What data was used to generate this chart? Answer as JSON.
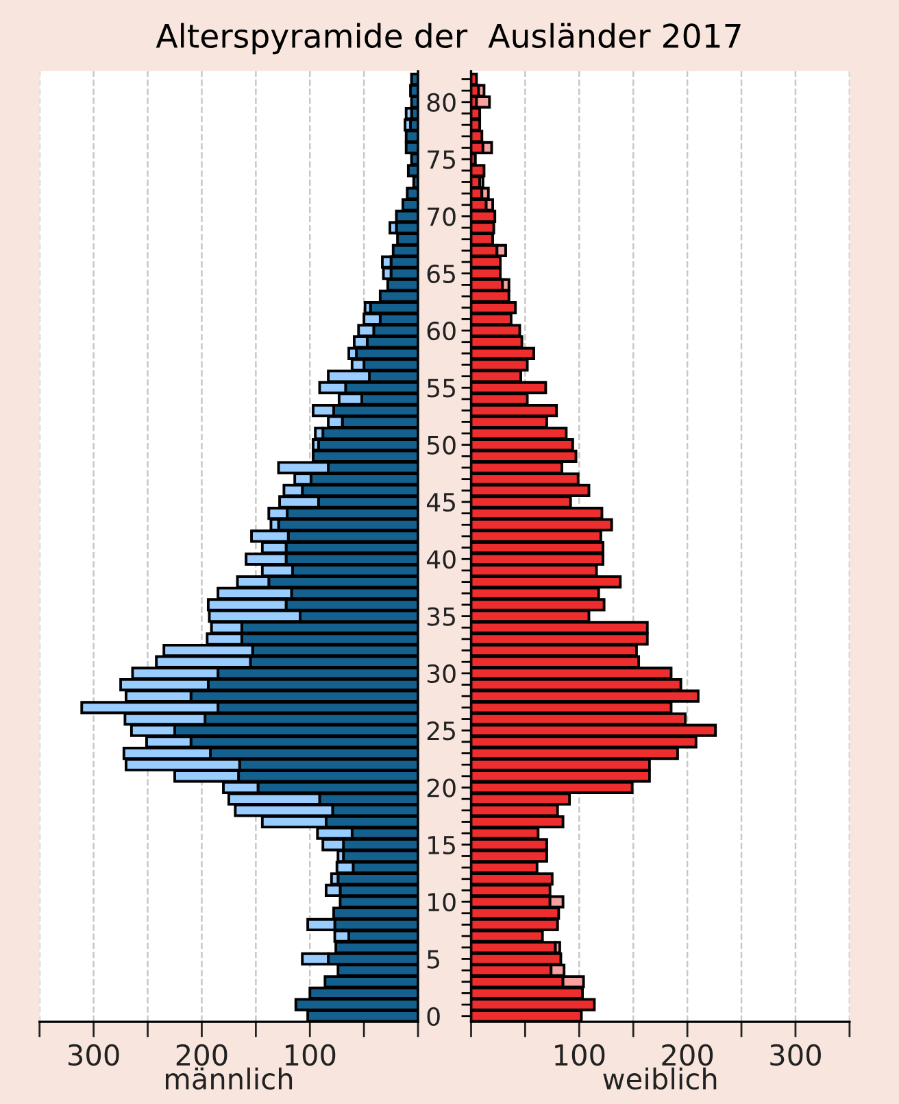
{
  "chart_data": [
    {
      "type": "bar",
      "orientation": "horizontal",
      "stacked": true,
      "title": "Alterspyramide der  Ausländer 2017",
      "xlabel": "männlich",
      "categories": [
        null,
        null,
        "80",
        null,
        null,
        null,
        null,
        "75",
        null,
        null,
        null,
        null,
        "70",
        null,
        null,
        null,
        null,
        "65",
        null,
        null,
        null,
        null,
        "60",
        null,
        null,
        null,
        null,
        "55",
        null,
        null,
        null,
        null,
        "50",
        null,
        null,
        null,
        null,
        "45",
        null,
        null,
        null,
        null,
        "40",
        null,
        null,
        null,
        null,
        "35",
        null,
        null,
        null,
        null,
        "30",
        null,
        null,
        null,
        null,
        "25",
        null,
        null,
        null,
        null,
        "20",
        null,
        null,
        null,
        null,
        "15",
        null,
        null,
        null,
        null,
        "10",
        null,
        null,
        null,
        null,
        "5",
        null,
        null,
        null,
        null,
        "0"
      ],
      "series": [
        {
          "color": "#14608f",
          "values": [
            6,
            7,
            6,
            6,
            7,
            11,
            11,
            6,
            9,
            4,
            10,
            14,
            20,
            20,
            19,
            23,
            25,
            25,
            28,
            35,
            44,
            35,
            41,
            47,
            57,
            50,
            45,
            67,
            52,
            78,
            70,
            88,
            92,
            97,
            83,
            99,
            107,
            92,
            121,
            129,
            120,
            122,
            122,
            116,
            138,
            117,
            122,
            109,
            163,
            163,
            153,
            155,
            185,
            194,
            210,
            185,
            197,
            225,
            210,
            192,
            165,
            166,
            148,
            91,
            79,
            85,
            61,
            69,
            69,
            60,
            74,
            72,
            72,
            78,
            77,
            64,
            76,
            83,
            74,
            86,
            100,
            113,
            102
          ]
        },
        {
          "color": "#99ccff",
          "values": [
            null,
            null,
            null,
            5,
            5,
            null,
            null,
            null,
            null,
            null,
            null,
            null,
            null,
            6,
            null,
            null,
            8,
            7,
            null,
            null,
            5,
            15,
            14,
            12,
            7,
            11,
            38,
            24,
            21,
            19,
            13,
            7,
            5,
            null,
            46,
            15,
            17,
            36,
            17,
            7,
            34,
            22,
            37,
            28,
            29,
            68,
            72,
            84,
            28,
            32,
            82,
            87,
            79,
            81,
            60,
            126,
            74,
            40,
            41,
            80,
            105,
            59,
            32,
            84,
            90,
            59,
            32,
            19,
            5,
            15,
            6,
            13,
            null,
            null,
            25,
            13,
            null,
            24,
            null,
            null,
            null,
            null,
            null
          ]
        }
      ],
      "xlim": [
        350,
        0
      ],
      "xticks": [
        {
          "value": 350,
          "label": null
        },
        300,
        {
          "value": 250,
          "label": null
        },
        200,
        {
          "value": 150,
          "label": null
        },
        100,
        {
          "value": 50,
          "label": null
        },
        {
          "value": 0,
          "label": null
        }
      ],
      "grid": "x",
      "line_style": "dashed"
    },
    {
      "type": "bar",
      "orientation": "horizontal",
      "stacked": true,
      "xlabel": "weiblich",
      "categories": [
        null,
        null,
        "80",
        null,
        null,
        null,
        null,
        "75",
        null,
        null,
        null,
        null,
        "70",
        null,
        null,
        null,
        null,
        "65",
        null,
        null,
        null,
        null,
        "60",
        null,
        null,
        null,
        null,
        "55",
        null,
        null,
        null,
        null,
        "50",
        null,
        null,
        null,
        null,
        "45",
        null,
        null,
        null,
        null,
        "40",
        null,
        null,
        null,
        null,
        "35",
        null,
        null,
        null,
        null,
        "30",
        null,
        null,
        null,
        null,
        "25",
        null,
        null,
        null,
        null,
        "20",
        null,
        null,
        null,
        null,
        "15",
        null,
        null,
        null,
        null,
        "10",
        null,
        null,
        null,
        null,
        "5",
        null,
        null,
        null,
        null,
        "0"
      ],
      "series": [
        {
          "color": "#ee2e2e",
          "values": [
            5,
            7,
            5,
            8,
            8,
            10,
            11,
            4,
            12,
            8,
            10,
            14,
            22,
            21,
            20,
            24,
            27,
            27,
            29,
            35,
            41,
            37,
            45,
            47,
            58,
            52,
            46,
            69,
            52,
            79,
            70,
            88,
            94,
            97,
            84,
            99,
            109,
            92,
            121,
            130,
            120,
            122,
            122,
            116,
            138,
            118,
            123,
            109,
            163,
            163,
            153,
            155,
            185,
            194,
            210,
            185,
            198,
            226,
            208,
            191,
            165,
            165,
            149,
            91,
            80,
            85,
            62,
            70,
            70,
            61,
            75,
            73,
            73,
            81,
            80,
            66,
            78,
            83,
            74,
            85,
            103,
            114,
            102
          ]
        },
        {
          "color": "#f7a1a1",
          "values": [
            null,
            5,
            12,
            null,
            null,
            null,
            8,
            null,
            null,
            3,
            6,
            6,
            null,
            null,
            null,
            8,
            null,
            null,
            6,
            null,
            null,
            null,
            null,
            null,
            null,
            null,
            null,
            null,
            null,
            null,
            null,
            null,
            null,
            null,
            null,
            null,
            null,
            null,
            null,
            null,
            null,
            null,
            null,
            null,
            null,
            null,
            null,
            null,
            null,
            null,
            null,
            null,
            null,
            null,
            null,
            null,
            null,
            null,
            null,
            null,
            null,
            null,
            null,
            null,
            null,
            null,
            null,
            null,
            null,
            null,
            null,
            null,
            12,
            null,
            null,
            null,
            4,
            null,
            12,
            19,
            null,
            null,
            null
          ]
        }
      ],
      "xlim": [
        0,
        350
      ],
      "xticks": [
        {
          "value": 0,
          "label": null
        },
        {
          "value": 50,
          "label": null
        },
        100,
        {
          "value": 150,
          "label": null
        },
        200,
        {
          "value": 250,
          "label": null
        },
        300,
        {
          "value": 350,
          "label": null
        }
      ],
      "grid": "x",
      "line_style": "dashed",
      "tick_labels": "x"
    }
  ]
}
